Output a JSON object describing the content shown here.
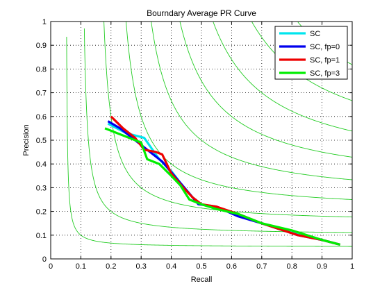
{
  "chart_data": {
    "type": "line",
    "title": "Bourndary Average PR Curve",
    "xlabel": "Recall",
    "ylabel": "Precision",
    "xlim": [
      0,
      1
    ],
    "ylim": [
      0,
      1
    ],
    "grid": true,
    "legend_position": "top-right",
    "xticks": [
      "0",
      "0.1",
      "0.2",
      "0.3",
      "0.4",
      "0.5",
      "0.6",
      "0.7",
      "0.8",
      "0.9",
      "1"
    ],
    "yticks": [
      "0",
      "0.1",
      "0.2",
      "0.3",
      "0.4",
      "0.5",
      "0.6",
      "0.7",
      "0.8",
      "0.9",
      "1"
    ],
    "iso_f_color": "#22cc22",
    "iso_f_levels": [
      0.1,
      0.2,
      0.3,
      0.4,
      0.5,
      0.6,
      0.7,
      0.8,
      0.9
    ],
    "series": [
      {
        "name": "SC",
        "color": "#00e5ee",
        "points": [
          [
            0.19,
            0.57
          ],
          [
            0.25,
            0.53
          ],
          [
            0.31,
            0.51
          ],
          [
            0.36,
            0.42
          ],
          [
            0.4,
            0.37
          ],
          [
            0.43,
            0.32
          ],
          [
            0.47,
            0.26
          ],
          [
            0.5,
            0.23
          ],
          [
            0.56,
            0.21
          ],
          [
            0.62,
            0.19
          ],
          [
            0.7,
            0.15
          ],
          [
            0.8,
            0.11
          ],
          [
            0.9,
            0.08
          ],
          [
            0.96,
            0.06
          ]
        ]
      },
      {
        "name": "SC, fp=0",
        "color": "#0000ee",
        "points": [
          [
            0.19,
            0.58
          ],
          [
            0.23,
            0.55
          ],
          [
            0.28,
            0.5
          ],
          [
            0.33,
            0.45
          ],
          [
            0.37,
            0.41
          ],
          [
            0.41,
            0.35
          ],
          [
            0.45,
            0.29
          ],
          [
            0.49,
            0.23
          ],
          [
            0.55,
            0.22
          ],
          [
            0.62,
            0.18
          ],
          [
            0.7,
            0.15
          ],
          [
            0.82,
            0.1
          ],
          [
            0.9,
            0.08
          ],
          [
            0.96,
            0.06
          ]
        ]
      },
      {
        "name": "SC, fp=1",
        "color": "#ee0000",
        "points": [
          [
            0.2,
            0.6
          ],
          [
            0.24,
            0.55
          ],
          [
            0.28,
            0.51
          ],
          [
            0.31,
            0.46
          ],
          [
            0.35,
            0.45
          ],
          [
            0.37,
            0.44
          ],
          [
            0.4,
            0.36
          ],
          [
            0.44,
            0.3
          ],
          [
            0.47,
            0.26
          ],
          [
            0.5,
            0.23
          ],
          [
            0.55,
            0.22
          ],
          [
            0.62,
            0.19
          ],
          [
            0.7,
            0.15
          ],
          [
            0.82,
            0.1
          ],
          [
            0.9,
            0.08
          ],
          [
            0.96,
            0.06
          ]
        ]
      },
      {
        "name": "SC, fp=3",
        "color": "#00ee00",
        "points": [
          [
            0.18,
            0.55
          ],
          [
            0.22,
            0.53
          ],
          [
            0.3,
            0.49
          ],
          [
            0.32,
            0.42
          ],
          [
            0.36,
            0.4
          ],
          [
            0.4,
            0.35
          ],
          [
            0.43,
            0.31
          ],
          [
            0.46,
            0.25
          ],
          [
            0.5,
            0.23
          ],
          [
            0.55,
            0.21
          ],
          [
            0.62,
            0.19
          ],
          [
            0.7,
            0.15
          ],
          [
            0.8,
            0.12
          ],
          [
            0.9,
            0.08
          ],
          [
            0.96,
            0.06
          ]
        ]
      }
    ]
  }
}
